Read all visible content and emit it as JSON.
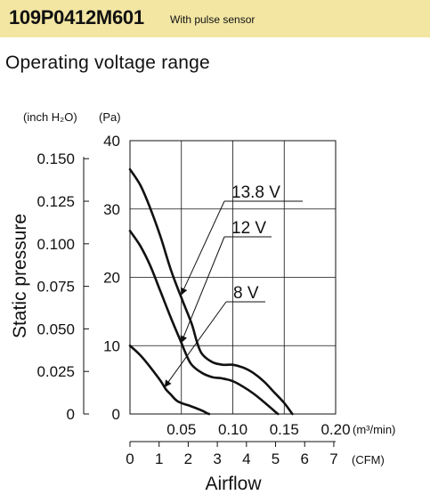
{
  "header": {
    "model": "109P0412M601",
    "subtitle": "With pulse sensor"
  },
  "section_title": "Operating voltage range",
  "colors": {
    "header_background": "#f3e6a3",
    "line": "#111111",
    "grid": "#111111"
  },
  "chart_data": {
    "type": "line",
    "title": "Operating voltage range",
    "xlabel": "Airflow",
    "ylabel": "Static pressure",
    "x_unit_primary": "(m³/min)",
    "x_unit_secondary": "(CFM)",
    "y_unit_primary": "(Pa)",
    "y_unit_secondary": "(inch H₂O)",
    "xlim": [
      0,
      0.2
    ],
    "ylim": [
      0,
      40
    ],
    "x_ticks": [
      0.05,
      0.1,
      0.15,
      0.2
    ],
    "x_tick_labels": [
      "0.05",
      "0.10",
      "0.15",
      "0.20"
    ],
    "y_ticks": [
      0,
      10,
      20,
      30,
      40
    ],
    "y_tick_labels": [
      "0",
      "10",
      "20",
      "30",
      "40"
    ],
    "cfm_ticks": [
      0,
      1,
      2,
      3,
      4,
      5,
      6,
      7
    ],
    "cfm_tick_labels": [
      "0",
      "1",
      "2",
      "3",
      "4",
      "5",
      "6",
      "7"
    ],
    "inch_ticks": [
      0,
      0.025,
      0.05,
      0.075,
      0.1,
      0.125,
      0.15
    ],
    "inch_tick_labels": [
      "0",
      "0.025",
      "0.050",
      "0.075",
      "0.100",
      "0.125",
      "0.150"
    ],
    "grid": true,
    "series": [
      {
        "name": "13.8 V",
        "points": [
          [
            0,
            35.8
          ],
          [
            0.01,
            33.5
          ],
          [
            0.02,
            30.0
          ],
          [
            0.03,
            25.8
          ],
          [
            0.04,
            21.0
          ],
          [
            0.05,
            17.0
          ],
          [
            0.06,
            13.2
          ],
          [
            0.065,
            10.6
          ],
          [
            0.07,
            8.8
          ],
          [
            0.08,
            7.6
          ],
          [
            0.09,
            7.2
          ],
          [
            0.1,
            7.2
          ],
          [
            0.11,
            6.8
          ],
          [
            0.12,
            6.0
          ],
          [
            0.13,
            4.8
          ],
          [
            0.14,
            3.2
          ],
          [
            0.15,
            1.6
          ],
          [
            0.158,
            0
          ]
        ]
      },
      {
        "name": "12 V",
        "points": [
          [
            0,
            26.8
          ],
          [
            0.01,
            24.6
          ],
          [
            0.02,
            21.6
          ],
          [
            0.03,
            17.8
          ],
          [
            0.04,
            14.0
          ],
          [
            0.05,
            10.4
          ],
          [
            0.055,
            8.6
          ],
          [
            0.06,
            7.2
          ],
          [
            0.07,
            6.0
          ],
          [
            0.08,
            5.4
          ],
          [
            0.09,
            5.2
          ],
          [
            0.1,
            4.8
          ],
          [
            0.11,
            4.0
          ],
          [
            0.12,
            3.0
          ],
          [
            0.13,
            1.8
          ],
          [
            0.14,
            0.5
          ],
          [
            0.144,
            0
          ]
        ]
      },
      {
        "name": "8 V",
        "points": [
          [
            0,
            10.0
          ],
          [
            0.01,
            8.6
          ],
          [
            0.02,
            6.8
          ],
          [
            0.03,
            4.8
          ],
          [
            0.035,
            3.6
          ],
          [
            0.04,
            2.8
          ],
          [
            0.045,
            2.0
          ],
          [
            0.05,
            1.6
          ],
          [
            0.06,
            1.1
          ],
          [
            0.07,
            0.5
          ],
          [
            0.075,
            0.1
          ],
          [
            0.077,
            0
          ]
        ]
      }
    ],
    "annotations": [
      {
        "label": "13.8 V",
        "series": "13.8 V",
        "arrow_to": [
          0.05,
          17.5
        ]
      },
      {
        "label": "12 V",
        "series": "12 V",
        "arrow_to": [
          0.05,
          10.5
        ]
      },
      {
        "label": "8 V",
        "series": "8 V",
        "arrow_to": [
          0.034,
          4.0
        ]
      }
    ]
  }
}
